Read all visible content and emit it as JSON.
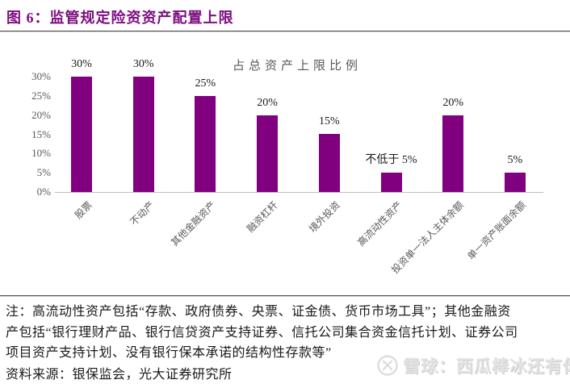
{
  "header": {
    "title": "图 6：监管规定险资资产配置上限"
  },
  "chart_data": {
    "type": "bar",
    "title": "占总资产上限比例",
    "categories": [
      "股票",
      "不动产",
      "其他金融资产",
      "融资杠杆",
      "境外投资",
      "高流动性资产",
      "投资单一法人主体余额",
      "单一资产账面余额"
    ],
    "values": [
      30,
      30,
      25,
      20,
      15,
      5,
      20,
      5
    ],
    "data_labels": [
      "30%",
      "30%",
      "25%",
      "20%",
      "15%",
      "不低于 5%",
      "20%",
      "5%"
    ],
    "y_ticks": [
      "30%",
      "25%",
      "20%",
      "15%",
      "10%",
      "5%",
      "0%"
    ],
    "ylim": [
      0,
      30
    ],
    "grid": false,
    "legend_position": "none",
    "xlabel": "",
    "ylabel": ""
  },
  "colors": {
    "accent": "#7c0e80",
    "bar": "#800080",
    "axis": "#bfbfbf",
    "tick_text": "#595959",
    "divider": "#4d4d4d"
  },
  "notes": {
    "line1": "注：高流动性资产包括“存款、政府债券、央票、证金债、货币市场工具”；其他金融资",
    "line2": "产包括“银行理财产品、银行信贷资产支持证券、信托公司集合资金信托计划、证券公司",
    "line3": "项目资产支持计划、没有银行保本承诺的结构性存款等”",
    "source": "资料来源：银保监会，光大证券研究所"
  },
  "watermark": {
    "logo": "xueqiu-logo",
    "text": "雪球：西瓜棒冰还有你"
  }
}
